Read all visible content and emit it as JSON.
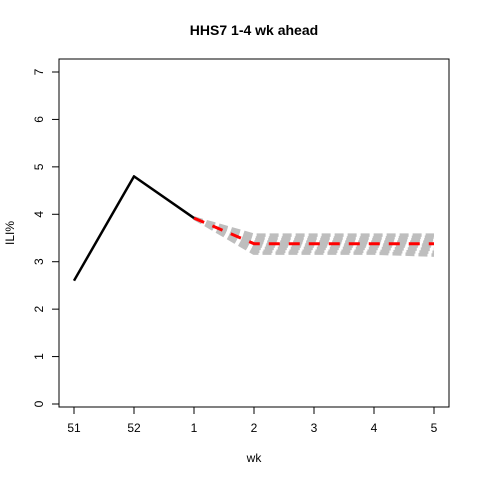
{
  "chart_data": {
    "type": "line",
    "title": "HHS7 1-4 wk ahead",
    "xlabel": "wk",
    "ylabel": "ILI%",
    "x_ticks": [
      "51",
      "52",
      "1",
      "2",
      "3",
      "4",
      "5"
    ],
    "y_ticks": [
      "0",
      "1",
      "2",
      "3",
      "4",
      "5",
      "6",
      "7"
    ],
    "ylim": [
      0,
      7
    ],
    "grid": false,
    "legend": "none",
    "observed": {
      "x": [
        "51",
        "52",
        "1"
      ],
      "values": [
        2.6,
        4.8,
        3.92
      ],
      "color": "#000000"
    },
    "forecast_median": {
      "x": [
        "1",
        "2",
        "3",
        "4",
        "5"
      ],
      "values": [
        3.92,
        3.38,
        3.38,
        3.38,
        3.38
      ],
      "color": "#ff0000"
    },
    "forecast_samples": {
      "color": "#bebebe",
      "x": [
        "1",
        "2",
        "3",
        "4",
        "5"
      ],
      "lines": [
        [
          3.92,
          3.56,
          3.56,
          3.56,
          3.56
        ],
        [
          3.92,
          3.5,
          3.5,
          3.5,
          3.52
        ],
        [
          3.92,
          3.46,
          3.46,
          3.46,
          3.46
        ],
        [
          3.92,
          3.42,
          3.42,
          3.42,
          3.42
        ],
        [
          3.92,
          3.4,
          3.4,
          3.4,
          3.4
        ],
        [
          3.92,
          3.36,
          3.36,
          3.36,
          3.36
        ],
        [
          3.92,
          3.33,
          3.33,
          3.33,
          3.33
        ],
        [
          3.92,
          3.28,
          3.28,
          3.28,
          3.26
        ],
        [
          3.92,
          3.22,
          3.22,
          3.22,
          3.2
        ],
        [
          3.92,
          3.18,
          3.18,
          3.18,
          3.14
        ]
      ]
    }
  }
}
